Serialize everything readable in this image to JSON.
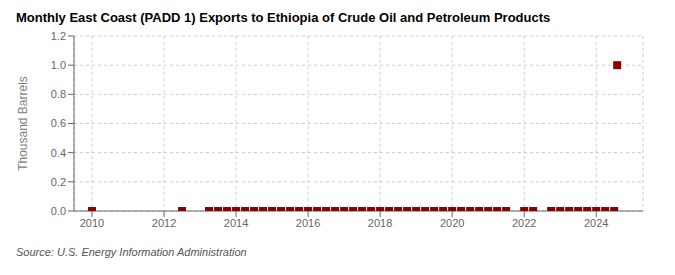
{
  "chart_data": {
    "type": "scatter",
    "title": "Monthly East Coast (PADD 1) Exports to Ethiopia of Crude Oil and Petroleum Products",
    "y_label": "Thousand Barrels",
    "source": "Source: U.S. Energy Information Administration",
    "x": [
      2010.0,
      2012.5,
      2013.25,
      2013.5,
      2013.75,
      2014.0,
      2014.25,
      2014.5,
      2014.75,
      2015.0,
      2015.25,
      2015.5,
      2015.75,
      2016.0,
      2016.25,
      2016.5,
      2016.75,
      2017.0,
      2017.25,
      2017.5,
      2017.75,
      2018.0,
      2018.25,
      2018.5,
      2018.75,
      2019.0,
      2019.25,
      2019.5,
      2019.75,
      2020.0,
      2020.25,
      2020.5,
      2020.75,
      2021.0,
      2021.25,
      2021.5,
      2022.0,
      2022.25,
      2022.75,
      2023.0,
      2023.25,
      2023.5,
      2023.75,
      2024.0,
      2024.25,
      2024.5,
      2024.583
    ],
    "values": [
      0.0,
      0.0,
      0.0,
      0.0,
      0.0,
      0.0,
      0.0,
      0.0,
      0.0,
      0.0,
      0.0,
      0.0,
      0.0,
      0.0,
      0.0,
      0.0,
      0.0,
      0.0,
      0.0,
      0.0,
      0.0,
      0.0,
      0.0,
      0.0,
      0.0,
      0.0,
      0.0,
      0.0,
      0.0,
      0.0,
      0.0,
      0.0,
      0.0,
      0.0,
      0.0,
      0.0,
      0.0,
      0.0,
      0.0,
      0.0,
      0.0,
      0.0,
      0.0,
      0.0,
      0.0,
      0.0,
      1.0
    ],
    "color": "#8b0000",
    "marker": "square",
    "xlim": [
      2009.5,
      2025.3
    ],
    "xticks": [
      2010,
      2012,
      2014,
      2016,
      2018,
      2020,
      2022,
      2024
    ],
    "ylim": [
      0.0,
      1.2
    ],
    "yticks": [
      {
        "value": 0,
        "label": "0.0"
      },
      0.2,
      0.4,
      0.6,
      0.8,
      {
        "value": 1,
        "label": "1.0"
      },
      1.2
    ],
    "grid": true
  }
}
